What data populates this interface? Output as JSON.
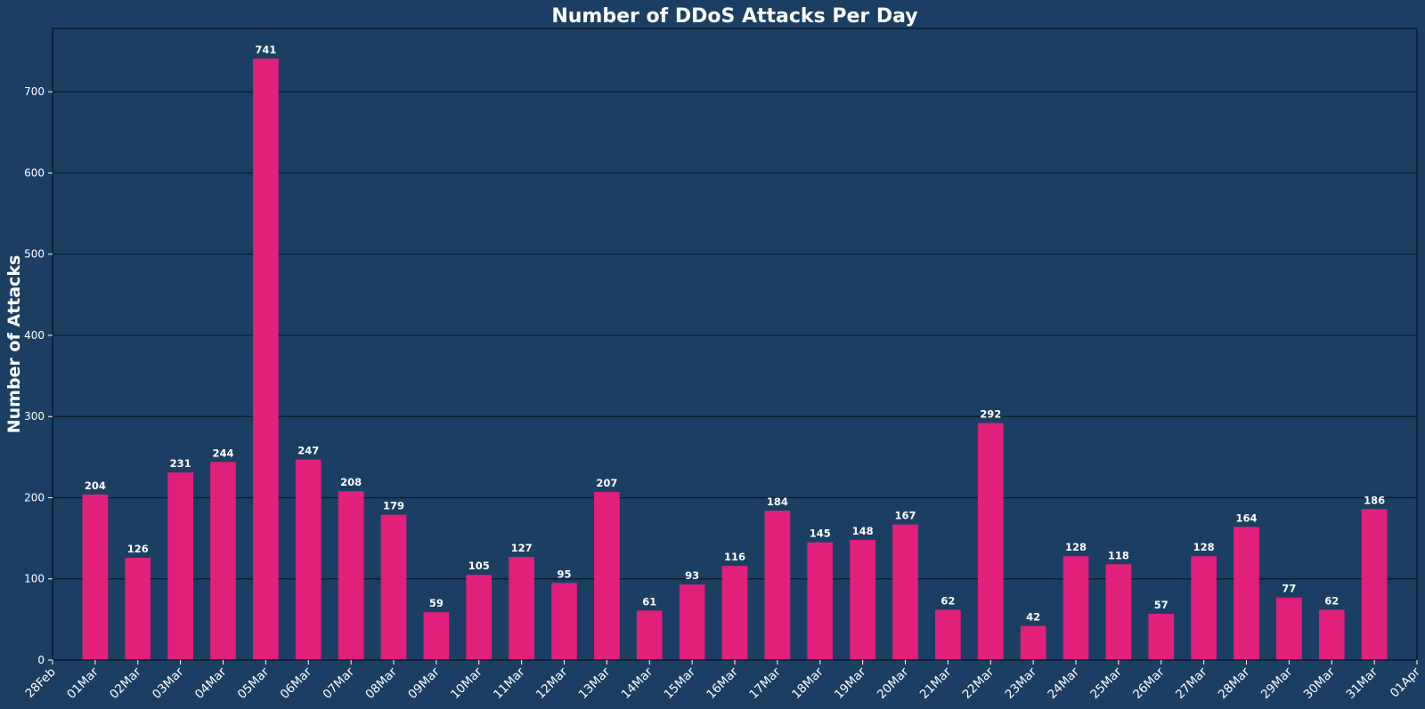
{
  "chart_data": {
    "type": "bar",
    "title": "Number of DDoS Attacks Per Day",
    "xlabel": "",
    "ylabel": "Number of Attacks",
    "categories": [
      "2025-03-01",
      "2025-03-02",
      "2025-03-03",
      "2025-03-04",
      "2025-03-05",
      "2025-03-06",
      "2025-03-07",
      "2025-03-08",
      "2025-03-09",
      "2025-03-10",
      "2025-03-11",
      "2025-03-12",
      "2025-03-13",
      "2025-03-14",
      "2025-03-15",
      "2025-03-16",
      "2025-03-17",
      "2025-03-18",
      "2025-03-19",
      "2025-03-20",
      "2025-03-21",
      "2025-03-22",
      "2025-03-23",
      "2025-03-24",
      "2025-03-25",
      "2025-03-26",
      "2025-03-27",
      "2025-03-28",
      "2025-03-29",
      "2025-03-30",
      "2025-03-31"
    ],
    "values": [
      204,
      126,
      231,
      244,
      741,
      247,
      208,
      179,
      59,
      105,
      127,
      95,
      207,
      61,
      93,
      116,
      184,
      145,
      148,
      167,
      62,
      292,
      42,
      128,
      118,
      57,
      128,
      164,
      77,
      62,
      186
    ],
    "data_labels": [
      "204",
      "126",
      "231",
      "244",
      "741",
      "247",
      "208",
      "179",
      "59",
      "105",
      "127",
      "95",
      "207",
      "61",
      "93",
      "116",
      "184",
      "145",
      "148",
      "167",
      "62",
      "292",
      "42",
      "128",
      "118",
      "57",
      "128",
      "164",
      "77",
      "62",
      "186"
    ],
    "x_tick_labels": [
      "28Feb",
      "01Mar",
      "02Mar",
      "03Mar",
      "04Mar",
      "05Mar",
      "06Mar",
      "07Mar",
      "08Mar",
      "09Mar",
      "10Mar",
      "11Mar",
      "12Mar",
      "13Mar",
      "14Mar",
      "15Mar",
      "16Mar",
      "17Mar",
      "18Mar",
      "19Mar",
      "20Mar",
      "21Mar",
      "22Mar",
      "23Mar",
      "24Mar",
      "25Mar",
      "26Mar",
      "27Mar",
      "28Mar",
      "29Mar",
      "30Mar",
      "31Mar",
      "01Apr"
    ],
    "xlim": [
      "2025-02-28",
      "2025-04-01"
    ],
    "ylim": [
      0,
      778
    ],
    "y_ticks": [
      0,
      100,
      200,
      300,
      400,
      500,
      600,
      700
    ],
    "y_tick_labels": [
      "0",
      "100",
      "200",
      "300",
      "400",
      "500",
      "600",
      "700"
    ],
    "grid": "horizontal",
    "colors": {
      "background": "#1b3f63",
      "bar": "#e0207a",
      "grid": "#0b1a2a",
      "text": "#ffffff"
    }
  }
}
